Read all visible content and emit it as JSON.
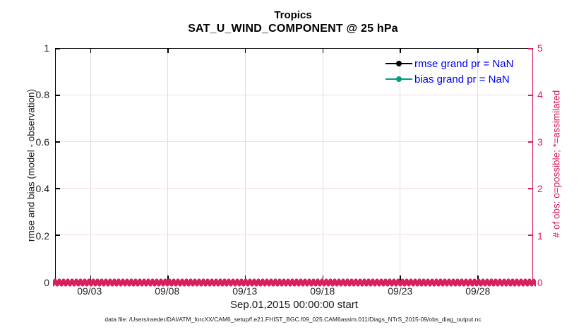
{
  "colors": {
    "pink": "#D81E5B",
    "teal": "#009E86",
    "legend_blue": "#0000EE",
    "axis_text": "#262626",
    "grid_vertical": "#DEDEDE",
    "grid_horizontal": "#F5DCE6",
    "rmse_black": "#000000"
  },
  "chart": {
    "title": "Tropics",
    "subtitle": "SAT_U_WIND_COMPONENT @ 25 hPa",
    "left_axis": {
      "label": "rmse and bias (model - observation)",
      "ticks": [
        "0",
        "0.2",
        "0.4",
        "0.6",
        "0.8",
        "1"
      ]
    },
    "right_axis": {
      "label": "# of obs: o=possible; *=assimilated",
      "ticks": [
        "0",
        "1",
        "2",
        "3",
        "4",
        "5"
      ]
    },
    "x_axis": {
      "label": "Sep.01,2015 00:00:00 start",
      "ticks": [
        {
          "label": "09/03",
          "pos": 0.072
        },
        {
          "label": "09/08",
          "pos": 0.2345
        },
        {
          "label": "09/13",
          "pos": 0.397
        },
        {
          "label": "09/18",
          "pos": 0.5595
        },
        {
          "label": "09/23",
          "pos": 0.722
        },
        {
          "label": "09/28",
          "pos": 0.8845
        }
      ]
    },
    "legend": [
      {
        "label": "rmse grand pr = NaN",
        "color_key": "rmse_black"
      },
      {
        "label": "bias grand pr = NaN",
        "color_key": "teal"
      }
    ],
    "footnote": "data file: /Users/raeder/DAI/ATM_forcXX/CAM6_setup/f.e21.FHIST_BGC.f09_025.CAM6assim.011/Diags_NTrS_2015-09/obs_diag_output.nc"
  },
  "chart_data": {
    "type": "line",
    "title": "Tropics",
    "subtitle": "SAT_U_WIND_COMPONENT @ 25 hPa",
    "xlabel": "Sep.01,2015 00:00:00 start",
    "x_tick_labels": [
      "09/03",
      "09/08",
      "09/13",
      "09/18",
      "09/23",
      "09/28"
    ],
    "x_range_note": "daily bins from Sep 01 2015 00:00 through Oct 01 2015",
    "ylabel_left": "rmse and bias (model - observation)",
    "ylim_left": [
      0,
      1
    ],
    "yticks_left": [
      0,
      0.2,
      0.4,
      0.6,
      0.8,
      1
    ],
    "ylabel_right": "# of obs: o=possible; *=assimilated",
    "ylim_right": [
      0,
      5
    ],
    "yticks_right": [
      0,
      1,
      2,
      3,
      4,
      5
    ],
    "grid": true,
    "legend_position": "upper right inside, no box",
    "series": [
      {
        "name": "rmse grand pr = NaN",
        "axis": "left",
        "color": "#000000",
        "marker": "filled circle",
        "values": "NaN for all time bins (no curve drawn)"
      },
      {
        "name": "bias grand pr = NaN",
        "axis": "left",
        "color": "#009E86",
        "marker": "filled circle",
        "values": "NaN for all time bins (no curve drawn)"
      },
      {
        "name": "# of obs possible (o markers)",
        "axis": "right",
        "color": "#D81E5B",
        "marker": "o",
        "constant_value": 0
      },
      {
        "name": "# of obs assimilated (* markers)",
        "axis": "right",
        "color": "#D81E5B",
        "marker": "*",
        "constant_value": 0
      }
    ]
  }
}
